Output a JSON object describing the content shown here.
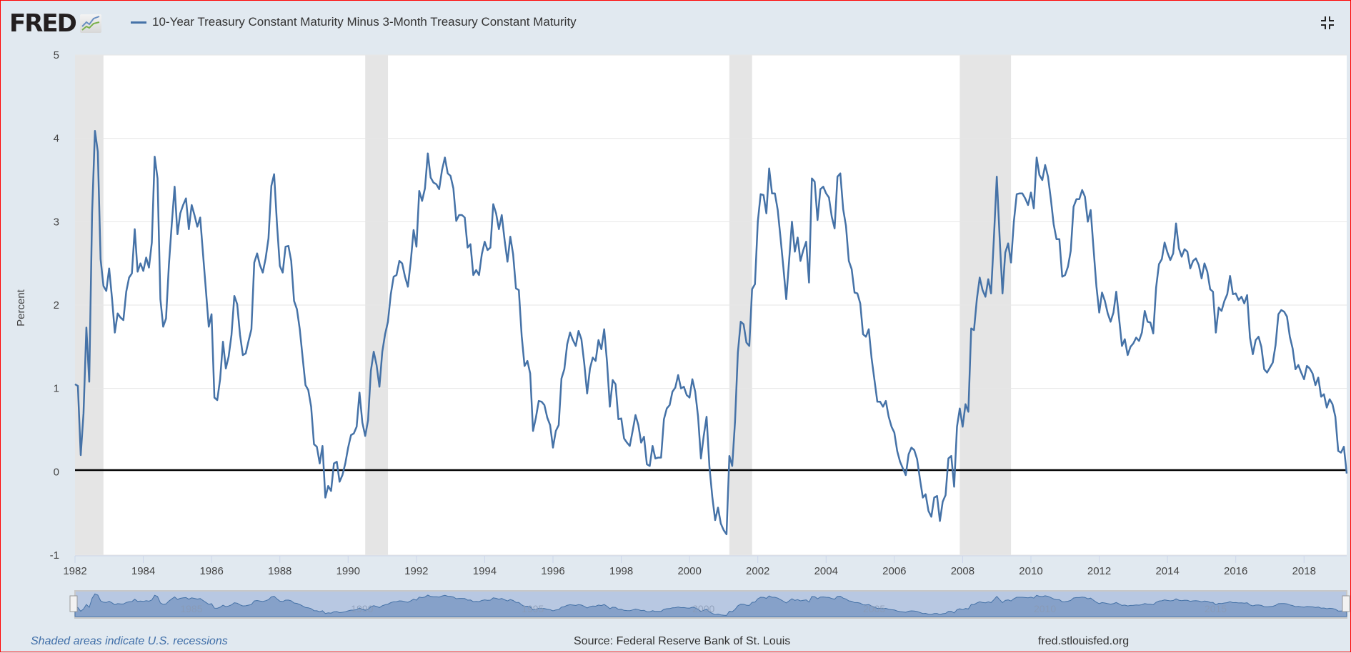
{
  "header": {
    "logo": "FRED",
    "legend_label": "10-Year Treasury Constant Maturity Minus 3-Month Treasury Constant Maturity",
    "fullscreen_icon": "exit-fullscreen-icon"
  },
  "footer": {
    "note": "Shaded areas indicate U.S. recessions",
    "source": "Source: Federal Reserve Bank of St. Louis",
    "site": "fred.stlouisfed.org"
  },
  "colors": {
    "series": "#4572a7",
    "recession": "#e5e5e5",
    "zero_line": "#000000",
    "background": "#e1e9f0"
  },
  "navigator": {
    "labels": [
      "1985",
      "1990",
      "1995",
      "2000",
      "2005",
      "2010",
      "2015"
    ]
  },
  "chart_data": {
    "type": "line",
    "title": "",
    "xlabel": "",
    "ylabel": "Percent",
    "ylim": [
      -1,
      5
    ],
    "yticks": [
      "-1",
      "0",
      "1",
      "2",
      "3",
      "4",
      "5"
    ],
    "xticks": [
      "1982",
      "1984",
      "1986",
      "1988",
      "1990",
      "1992",
      "1994",
      "1996",
      "1998",
      "2000",
      "2002",
      "2004",
      "2006",
      "2008",
      "2010",
      "2012",
      "2014",
      "2016",
      "2018"
    ],
    "grid": true,
    "legend": "top-left",
    "frequency": "monthly",
    "recessions": [
      [
        "1981-07",
        "1982-11"
      ],
      [
        "1990-07",
        "1991-03"
      ],
      [
        "2001-03",
        "2001-11"
      ],
      [
        "2007-12",
        "2009-06"
      ]
    ],
    "series": [
      {
        "name": "10-Year Treasury Constant Maturity Minus 3-Month Treasury Constant Maturity",
        "values_by_year": {
          "1982": [
            1.05,
            1.03,
            0.2,
            0.7,
            1.73,
            1.08,
            3.1,
            4.09,
            3.84,
            2.55,
            2.23,
            2.17
          ],
          "1983": [
            2.44,
            2.08,
            1.67,
            1.9,
            1.85,
            1.82,
            2.16,
            2.33,
            2.38,
            2.91,
            2.4,
            2.5
          ],
          "1984": [
            2.41,
            2.57,
            2.45,
            2.75,
            3.78,
            3.52,
            2.07,
            1.74,
            1.84,
            2.48,
            2.97,
            3.42
          ],
          "1985": [
            2.85,
            3.1,
            3.2,
            3.28,
            2.91,
            3.2,
            3.08,
            2.94,
            3.05,
            2.61,
            2.18,
            1.74
          ],
          "1986": [
            1.89,
            0.89,
            0.86,
            1.11,
            1.56,
            1.24,
            1.38,
            1.64,
            2.11,
            2.01,
            1.64,
            1.4
          ],
          "1987": [
            1.42,
            1.57,
            1.71,
            2.51,
            2.62,
            2.48,
            2.39,
            2.56,
            2.8,
            3.43,
            3.57,
            2.97
          ],
          "1988": [
            2.47,
            2.39,
            2.7,
            2.71,
            2.53,
            2.05,
            1.95,
            1.71,
            1.37,
            1.04,
            0.98,
            0.78
          ],
          "1989": [
            0.33,
            0.3,
            0.1,
            0.31,
            -0.31,
            -0.17,
            -0.23,
            0.1,
            0.12,
            -0.12,
            -0.04,
            0.1
          ],
          "1990": [
            0.29,
            0.44,
            0.46,
            0.54,
            0.95,
            0.59,
            0.43,
            0.62,
            1.21,
            1.44,
            1.28,
            1.02
          ],
          "1991": [
            1.44,
            1.65,
            1.8,
            2.13,
            2.34,
            2.36,
            2.53,
            2.5,
            2.34,
            2.22,
            2.52,
            2.9
          ],
          "1992": [
            2.7,
            3.37,
            3.25,
            3.4,
            3.82,
            3.53,
            3.47,
            3.45,
            3.39,
            3.62,
            3.77,
            3.58
          ],
          "1993": [
            3.55,
            3.4,
            3.01,
            3.08,
            3.08,
            3.05,
            2.69,
            2.73,
            2.36,
            2.42,
            2.36,
            2.61
          ],
          "1994": [
            2.76,
            2.66,
            2.69,
            3.21,
            3.1,
            2.91,
            3.08,
            2.78,
            2.52,
            2.82,
            2.61,
            2.2
          ],
          "1995": [
            2.18,
            1.63,
            1.27,
            1.33,
            1.18,
            0.49,
            0.65,
            0.85,
            0.84,
            0.8,
            0.65,
            0.56
          ],
          "1996": [
            0.29,
            0.49,
            0.56,
            1.12,
            1.23,
            1.53,
            1.67,
            1.58,
            1.51,
            1.69,
            1.59,
            1.3
          ],
          "1997": [
            0.94,
            1.24,
            1.37,
            1.33,
            1.58,
            1.47,
            1.71,
            1.31,
            0.78,
            1.1,
            1.05,
            0.63
          ],
          "1998": [
            0.64,
            0.4,
            0.35,
            0.31,
            0.49,
            0.68,
            0.56,
            0.35,
            0.42,
            0.09,
            0.07,
            0.31
          ],
          "1999": [
            0.16,
            0.17,
            0.17,
            0.63,
            0.76,
            0.8,
            0.96,
            1.01,
            1.16,
            1.0,
            1.02,
            0.92
          ],
          "2000": [
            0.89,
            1.11,
            0.96,
            0.66,
            0.16,
            0.43,
            0.66,
            0.06,
            -0.3,
            -0.58,
            -0.43,
            -0.62
          ],
          "2001": [
            -0.7,
            -0.75,
            0.19,
            0.07,
            0.6,
            1.43,
            1.8,
            1.77,
            1.55,
            1.51,
            2.19,
            2.25
          ],
          "2002": [
            3.0,
            3.33,
            3.32,
            3.1,
            3.64,
            3.34,
            3.34,
            3.14,
            2.8,
            2.45,
            2.07,
            2.53
          ],
          "2003": [
            3.0,
            2.64,
            2.81,
            2.53,
            2.66,
            2.76,
            2.27,
            3.52,
            3.48,
            3.02,
            3.39,
            3.42
          ],
          "2004": [
            3.34,
            3.29,
            3.06,
            2.92,
            3.54,
            3.58,
            3.15,
            2.95,
            2.53,
            2.43,
            2.15,
            2.14
          ],
          "2005": [
            2.02,
            1.65,
            1.62,
            1.71,
            1.36,
            1.1,
            0.84,
            0.84,
            0.78,
            0.85,
            0.66,
            0.54
          ],
          "2006": [
            0.47,
            0.25,
            0.12,
            0.04,
            -0.04,
            0.21,
            0.29,
            0.26,
            0.15,
            -0.09,
            -0.31,
            -0.27
          ],
          "2007": [
            -0.47,
            -0.54,
            -0.31,
            -0.29,
            -0.59,
            -0.36,
            -0.28,
            0.16,
            0.19,
            -0.18,
            0.54,
            0.76
          ],
          "2008": [
            0.54,
            0.81,
            0.72,
            1.72,
            1.7,
            2.07,
            2.33,
            2.18,
            2.1,
            2.31,
            2.14,
            2.81
          ],
          "2009": [
            3.54,
            2.81,
            2.14,
            2.63,
            2.74,
            2.51,
            3.0,
            3.33,
            3.34,
            3.34,
            3.28,
            3.2
          ],
          "2010": [
            3.35,
            3.16,
            3.77,
            3.56,
            3.5,
            3.68,
            3.54,
            3.27,
            2.97,
            2.79,
            2.79,
            2.34
          ],
          "2011": [
            2.36,
            2.46,
            2.65,
            3.18,
            3.27,
            3.27,
            3.38,
            3.3,
            3.0,
            3.14,
            2.68,
            2.23
          ],
          "2012": [
            1.91,
            2.15,
            2.05,
            1.9,
            1.8,
            1.91,
            2.16,
            1.84,
            1.51,
            1.59,
            1.4,
            1.5
          ],
          "2013": [
            1.54,
            1.61,
            1.57,
            1.67,
            1.93,
            1.8,
            1.79,
            1.66,
            2.21,
            2.49,
            2.55,
            2.75
          ],
          "2014": [
            2.63,
            2.54,
            2.62,
            2.98,
            2.68,
            2.58,
            2.67,
            2.64,
            2.44,
            2.53,
            2.56,
            2.48
          ],
          "2015": [
            2.32,
            2.5,
            2.4,
            2.19,
            2.16,
            1.67,
            1.97,
            1.93,
            2.05,
            2.13,
            2.35,
            2.13
          ],
          "2016": [
            2.14,
            2.06,
            2.1,
            2.02,
            2.12,
            1.61,
            1.41,
            1.58,
            1.62,
            1.5,
            1.23,
            1.19
          ],
          "2017": [
            1.25,
            1.31,
            1.52,
            1.89,
            1.94,
            1.92,
            1.86,
            1.62,
            1.48,
            1.23,
            1.28,
            1.19
          ],
          "2018": [
            1.11,
            1.27,
            1.24,
            1.18,
            1.04,
            1.13,
            0.9,
            0.93,
            0.77,
            0.87,
            0.81,
            0.66
          ],
          "2019": [
            0.25,
            0.23,
            0.3,
            -0.02
          ]
        }
      }
    ]
  }
}
